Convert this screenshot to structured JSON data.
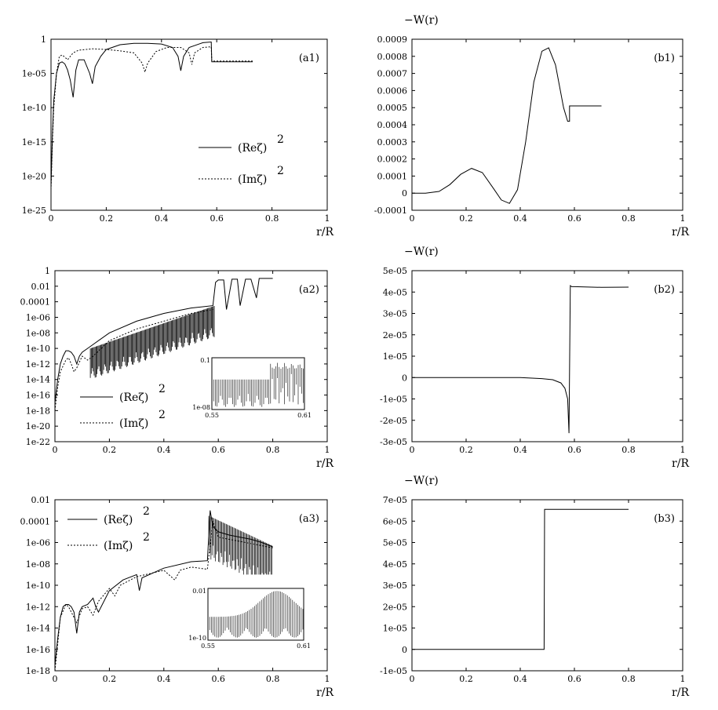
{
  "panels": [
    {
      "id": "a1",
      "label": "(a1)",
      "type": "line",
      "yscale": "log",
      "xlim": [
        0,
        1
      ],
      "ylim": [
        -25,
        0
      ],
      "xticks": [
        "0",
        "0.2",
        "0.4",
        "0.6",
        "0.8",
        "1"
      ],
      "yticks": [
        "1",
        "1e-05",
        "1e-10",
        "1e-15",
        "1e-20",
        "1e-25"
      ],
      "xlabel": "r/R",
      "ylabel": "",
      "legend": [
        "(Reζ)",
        "(Imζ)"
      ],
      "legend_exp": "2",
      "series": [
        {
          "name": "(Reζ)²",
          "style": "solid",
          "x": [
            0,
            0.005,
            0.01,
            0.02,
            0.03,
            0.04,
            0.05,
            0.06,
            0.07,
            0.08,
            0.09,
            0.1,
            0.12,
            0.14,
            0.15,
            0.16,
            0.18,
            0.2,
            0.25,
            0.3,
            0.35,
            0.4,
            0.44,
            0.46,
            0.47,
            0.48,
            0.5,
            0.55,
            0.58,
            0.582,
            0.6,
            0.73
          ],
          "y": [
            -21.5,
            -14,
            -9,
            -5,
            -3.5,
            -3.3,
            -3.6,
            -4.5,
            -6,
            -8.5,
            -4.5,
            -3,
            -3,
            -5,
            -6.5,
            -4,
            -2.5,
            -1.5,
            -0.8,
            -0.6,
            -0.6,
            -0.7,
            -1.2,
            -2.5,
            -4.6,
            -2.5,
            -1.2,
            -0.5,
            -0.4,
            -3.3,
            -3.3,
            -3.3
          ]
        },
        {
          "name": "(Imζ)²",
          "style": "dotted",
          "x": [
            0,
            0.005,
            0.01,
            0.02,
            0.03,
            0.04,
            0.05,
            0.06,
            0.08,
            0.1,
            0.15,
            0.2,
            0.25,
            0.3,
            0.33,
            0.34,
            0.35,
            0.38,
            0.42,
            0.47,
            0.5,
            0.51,
            0.52,
            0.55,
            0.58,
            0.582,
            0.6,
            0.73
          ],
          "y": [
            -22,
            -15,
            -10,
            -5,
            -2.5,
            -2.3,
            -2.6,
            -3,
            -2,
            -1.6,
            -1.4,
            -1.5,
            -1.7,
            -2,
            -3.5,
            -4.8,
            -3.5,
            -1.8,
            -1.2,
            -1.2,
            -2,
            -3.7,
            -2,
            -1.2,
            -1.1,
            -3.2,
            -3.2,
            -3.2
          ]
        }
      ]
    },
    {
      "id": "b1",
      "label": "(b1)",
      "type": "line",
      "yscale": "linear",
      "xlim": [
        0,
        1
      ],
      "ylim": [
        -0.0001,
        0.0009
      ],
      "xticks": [
        "0",
        "0.2",
        "0.4",
        "0.6",
        "0.8",
        "1"
      ],
      "yticks": [
        "0.0009",
        "0.0008",
        "0.0007",
        "0.0006",
        "0.0005",
        "0.0004",
        "0.0003",
        "0.0002",
        "0.0001",
        "0",
        "-0.0001"
      ],
      "xlabel": "r/R",
      "ylabel": "−W(r)",
      "series": [
        {
          "name": "",
          "style": "solid",
          "x": [
            0,
            0.05,
            0.1,
            0.14,
            0.18,
            0.22,
            0.26,
            0.3,
            0.33,
            0.36,
            0.39,
            0.42,
            0.45,
            0.48,
            0.505,
            0.53,
            0.56,
            0.575,
            0.578,
            0.582,
            0.582,
            0.7
          ],
          "y": [
            0,
            0,
            1e-05,
            5e-05,
            0.00011,
            0.000145,
            0.00012,
            3e-05,
            -4e-05,
            -6e-05,
            2e-05,
            0.0003,
            0.00065,
            0.00083,
            0.00085,
            0.00075,
            0.0005,
            0.00042,
            0.00042,
            0.00042,
            0.00051,
            0.00051
          ]
        }
      ]
    },
    {
      "id": "a2",
      "label": "(a2)",
      "type": "line",
      "yscale": "log",
      "xlim": [
        0,
        1
      ],
      "ylim": [
        -22,
        0
      ],
      "xticks": [
        "0",
        "0.2",
        "0.4",
        "0.6",
        "0.8",
        "1"
      ],
      "yticks": [
        "1",
        "0.01",
        "0.0001",
        "1e-06",
        "1e-08",
        "1e-10",
        "1e-12",
        "1e-14",
        "1e-16",
        "1e-18",
        "1e-20",
        "1e-22"
      ],
      "xlabel": "r/R",
      "ylabel": "",
      "legend": [
        "(Reζ)",
        "(Imζ)"
      ],
      "legend_exp": "2",
      "inset": {
        "xlim": [
          0.55,
          0.61
        ],
        "xticks": [
          "0.55",
          "0.61"
        ],
        "yticks": [
          "0.1",
          "1e-08"
        ]
      },
      "series": [
        {
          "name": "(Reζ)²",
          "style": "solid",
          "x": [
            0,
            0.01,
            0.02,
            0.03,
            0.04,
            0.05,
            0.06,
            0.07,
            0.08,
            0.09,
            0.1,
            0.12,
            0.14,
            0.2,
            0.3,
            0.4,
            0.5,
            0.58,
            0.59,
            0.6,
            0.62,
            0.63,
            0.65,
            0.67,
            0.68,
            0.7,
            0.72,
            0.74,
            0.75,
            0.77,
            0.8
          ],
          "y": [
            -17,
            -14,
            -12,
            -11,
            -10.3,
            -10.3,
            -10.5,
            -11,
            -12,
            -11,
            -10.5,
            -10,
            -9.5,
            -8,
            -6.5,
            -5.5,
            -4.8,
            -4.5,
            -1.5,
            -1.2,
            -1.2,
            -5,
            -1.1,
            -1.1,
            -4.5,
            -1.1,
            -1.1,
            -3.5,
            -1,
            -1,
            -1
          ]
        },
        {
          "name": "(Imζ)²",
          "style": "dotted",
          "x": [
            0,
            0.01,
            0.02,
            0.04,
            0.05,
            0.06,
            0.07,
            0.08,
            0.1,
            0.12,
            0.14,
            0.2,
            0.3,
            0.4,
            0.5,
            0.58
          ],
          "y": [
            -18,
            -15,
            -13,
            -11.5,
            -11.2,
            -12,
            -13,
            -12.5,
            -11,
            -11.5,
            -11,
            -9,
            -7.5,
            -6.5,
            -5.5,
            -5
          ]
        }
      ]
    },
    {
      "id": "b2",
      "label": "(b2)",
      "type": "line",
      "yscale": "linear",
      "xlim": [
        0,
        1
      ],
      "ylim": [
        -3e-05,
        5e-05
      ],
      "xticks": [
        "0",
        "0.2",
        "0.4",
        "0.6",
        "0.8",
        "1"
      ],
      "yticks": [
        "5e-05",
        "4e-05",
        "3e-05",
        "2e-05",
        "1e-05",
        "0",
        "-1e-05",
        "-2e-05",
        "-3e-05"
      ],
      "xlabel": "r/R",
      "ylabel": "−W(r)",
      "series": [
        {
          "name": "",
          "style": "solid",
          "x": [
            0,
            0.4,
            0.48,
            0.52,
            0.55,
            0.565,
            0.575,
            0.58,
            0.585,
            0.59,
            0.6,
            0.7,
            0.8
          ],
          "y": [
            0,
            0,
            -5e-07,
            -1e-06,
            -2.5e-06,
            -5e-06,
            -1e-05,
            -2.6e-05,
            4.3e-05,
            4.25e-05,
            4.25e-05,
            4.22e-05,
            4.23e-05
          ]
        }
      ]
    },
    {
      "id": "a3",
      "label": "(a3)",
      "type": "line",
      "yscale": "log",
      "xlim": [
        0,
        1
      ],
      "ylim": [
        -18,
        -2
      ],
      "xticks": [
        "0",
        "0.2",
        "0.4",
        "0.6",
        "0.8",
        "1"
      ],
      "yticks": [
        "0.01",
        "0.0001",
        "1e-06",
        "1e-08",
        "1e-10",
        "1e-12",
        "1e-14",
        "1e-16",
        "1e-18"
      ],
      "xlabel": "r/R",
      "ylabel": "",
      "legend": [
        "(Reζ)",
        "(Imζ)"
      ],
      "legend_exp": "2",
      "inset": {
        "xlim": [
          0.55,
          0.61
        ],
        "xticks": [
          "0.55",
          "0.61"
        ],
        "yticks": [
          "0.01",
          "1e-10"
        ]
      },
      "series": [
        {
          "name": "(Reζ)²",
          "style": "solid",
          "x": [
            0,
            0.01,
            0.02,
            0.03,
            0.04,
            0.05,
            0.06,
            0.07,
            0.08,
            0.09,
            0.1,
            0.12,
            0.14,
            0.15,
            0.16,
            0.2,
            0.25,
            0.3,
            0.31,
            0.32,
            0.4,
            0.5,
            0.56,
            0.57,
            0.58,
            0.6,
            0.64,
            0.68,
            0.72,
            0.76,
            0.8
          ],
          "y": [
            -17.5,
            -15,
            -13,
            -12,
            -11.8,
            -11.8,
            -12,
            -12.5,
            -14.5,
            -12.5,
            -12,
            -11.8,
            -11.2,
            -12,
            -12.5,
            -10.5,
            -9.5,
            -9,
            -10.5,
            -9.3,
            -8.4,
            -7.8,
            -7.7,
            -3,
            -4.5,
            -5,
            -5.3,
            -5.5,
            -5.7,
            -6,
            -6.4
          ]
        },
        {
          "name": "(Imζ)²",
          "style": "dotted",
          "x": [
            0,
            0.01,
            0.02,
            0.04,
            0.05,
            0.06,
            0.08,
            0.1,
            0.12,
            0.14,
            0.16,
            0.2,
            0.22,
            0.24,
            0.3,
            0.4,
            0.44,
            0.46,
            0.5,
            0.56,
            0.58,
            0.6,
            0.7,
            0.8
          ],
          "y": [
            -18,
            -15.5,
            -13,
            -11.8,
            -12,
            -12.5,
            -13.5,
            -12.2,
            -12,
            -12.8,
            -11.5,
            -10.3,
            -11,
            -10,
            -9.2,
            -8.6,
            -9.5,
            -8.6,
            -8.3,
            -8.5,
            -4,
            -5.5,
            -6,
            -6.5
          ]
        }
      ]
    },
    {
      "id": "b3",
      "label": "(b3)",
      "type": "line",
      "yscale": "linear",
      "xlim": [
        0,
        1
      ],
      "ylim": [
        -1e-05,
        7e-05
      ],
      "xticks": [
        "0",
        "0.2",
        "0.4",
        "0.6",
        "0.8",
        "1"
      ],
      "yticks": [
        "7e-05",
        "6e-05",
        "5e-05",
        "4e-05",
        "3e-05",
        "2e-05",
        "1e-05",
        "0",
        "-1e-05"
      ],
      "xlabel": "r/R",
      "ylabel": "−W(r)",
      "series": [
        {
          "name": "",
          "style": "solid",
          "x": [
            0,
            0.3,
            0.48,
            0.488,
            0.49,
            0.6,
            0.8
          ],
          "y": [
            0,
            0,
            0,
            0,
            6.55e-05,
            6.55e-05,
            6.55e-05
          ]
        }
      ]
    }
  ]
}
